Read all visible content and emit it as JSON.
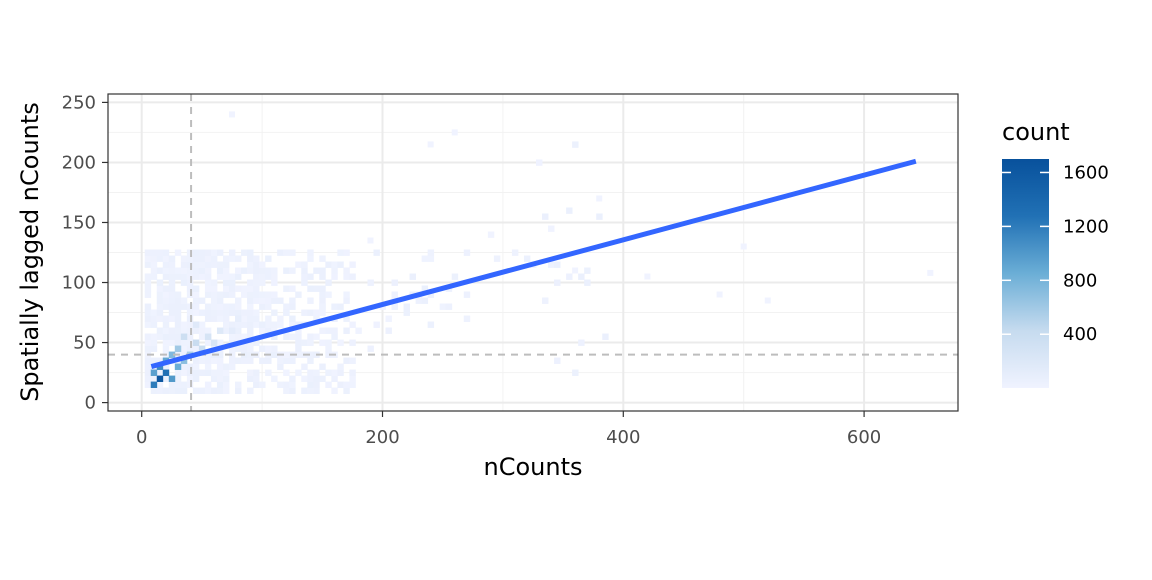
{
  "chart_data": {
    "type": "heatmap",
    "subtype": "2d-binned-scatter-with-regression",
    "title": "",
    "xlabel": "nCounts",
    "ylabel": "Spatially lagged nCounts",
    "xlim": [
      -28,
      678
    ],
    "ylim": [
      -7,
      257
    ],
    "x_ticks": [
      0,
      200,
      400,
      600
    ],
    "y_ticks": [
      0,
      50,
      100,
      150,
      200,
      250
    ],
    "x_tick_labels": [
      "0",
      "200",
      "400",
      "600"
    ],
    "y_tick_labels": [
      "0",
      "50",
      "100",
      "150",
      "200",
      "250"
    ],
    "grid": true,
    "theme": "bw",
    "reference_lines": {
      "vline_x": 41,
      "hline_y": 40,
      "style": "dashed",
      "color": "#bdbdbd"
    },
    "regression_line": {
      "x": [
        8,
        643
      ],
      "y": [
        30,
        201
      ],
      "color": "#3366ff"
    },
    "bin_width": {
      "x": 5,
      "y": 5
    },
    "density_bins": [
      {
        "x": 15,
        "y": 20,
        "count": 1650
      },
      {
        "x": 10,
        "y": 15,
        "count": 1200
      },
      {
        "x": 20,
        "y": 25,
        "count": 1300
      },
      {
        "x": 15,
        "y": 30,
        "count": 1100
      },
      {
        "x": 25,
        "y": 20,
        "count": 1000
      },
      {
        "x": 10,
        "y": 25,
        "count": 950
      },
      {
        "x": 20,
        "y": 35,
        "count": 900
      },
      {
        "x": 30,
        "y": 30,
        "count": 850
      },
      {
        "x": 25,
        "y": 40,
        "count": 750
      },
      {
        "x": 35,
        "y": 35,
        "count": 700
      },
      {
        "x": 30,
        "y": 45,
        "count": 600
      },
      {
        "x": 40,
        "y": 40,
        "count": 550
      },
      {
        "x": 45,
        "y": 50,
        "count": 400
      },
      {
        "x": 50,
        "y": 45,
        "count": 380
      },
      {
        "x": 35,
        "y": 55,
        "count": 350
      },
      {
        "x": 55,
        "y": 55,
        "count": 260
      },
      {
        "x": 60,
        "y": 50,
        "count": 240
      },
      {
        "x": 65,
        "y": 60,
        "count": 180
      },
      {
        "x": 45,
        "y": 65,
        "count": 170
      },
      {
        "x": 75,
        "y": 60,
        "count": 120
      },
      {
        "x": 80,
        "y": 70,
        "count": 90
      },
      {
        "x": 100,
        "y": 65,
        "count": 60
      },
      {
        "x": 120,
        "y": 75,
        "count": 40
      },
      {
        "x": 150,
        "y": 80,
        "count": 20
      }
    ],
    "legend": {
      "title": "count",
      "type": "continuous-colorbar",
      "position": "right",
      "min": 1,
      "max": 1700,
      "breaks": [
        400,
        800,
        1200,
        1600
      ],
      "labels": [
        "400",
        "800",
        "1200",
        "1600"
      ],
      "color_low": "#f0f3ff",
      "color_high": "#08519c"
    }
  }
}
